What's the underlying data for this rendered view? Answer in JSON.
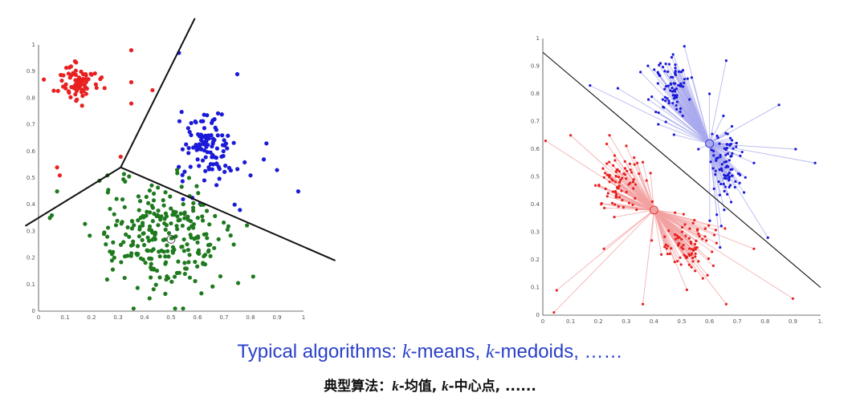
{
  "captions": {
    "english": {
      "prefix": "Typical algorithms: ",
      "k1": "k",
      "mid1": "-means, ",
      "k2": "k",
      "mid2": "-medoids, ……"
    },
    "chinese": {
      "prefix": "典型算法：",
      "k1": "k",
      "mid1": "-均值, ",
      "k2": "k",
      "mid2": "-中心点, ......"
    }
  },
  "colors": {
    "red": "#e82020",
    "blue": "#1a1ad8",
    "green": "#1f7a1f",
    "light_red": "#f2a0a0",
    "light_blue": "#a9a9ee",
    "caption_blue": "#2a40c8",
    "boundary": "#111111"
  },
  "chart_data": [
    {
      "type": "scatter",
      "algorithm": "k-means",
      "xlim": [
        0,
        1
      ],
      "ylim": [
        0,
        1
      ],
      "x_ticks": [
        "0",
        "0.1",
        "0.2",
        "0.3",
        "0.4",
        "0.5",
        "0.6",
        "0.7",
        "0.8",
        "0.9",
        "1"
      ],
      "y_ticks": [
        "0",
        "0.1",
        "0.2",
        "0.3",
        "0.4",
        "0.5",
        "0.6",
        "0.7",
        "0.8",
        "0.9",
        "1"
      ],
      "clusters": [
        {
          "color": "red",
          "center": [
            0.15,
            0.86
          ],
          "spread": [
            0.035,
            0.035
          ],
          "count": 80,
          "extras": [
            [
              0.35,
              0.98
            ],
            [
              0.35,
              0.86
            ],
            [
              0.43,
              0.83
            ],
            [
              0.35,
              0.78
            ],
            [
              0.07,
              0.54
            ],
            [
              0.08,
              0.51
            ],
            [
              0.31,
              0.58
            ],
            [
              0.02,
              0.87
            ]
          ]
        },
        {
          "color": "blue",
          "center": [
            0.64,
            0.62
          ],
          "spread": [
            0.05,
            0.07
          ],
          "count": 110,
          "extras": [
            [
              0.53,
              0.97
            ],
            [
              0.75,
              0.89
            ],
            [
              0.86,
              0.63
            ],
            [
              0.85,
              0.57
            ],
            [
              0.9,
              0.53
            ],
            [
              0.98,
              0.45
            ],
            [
              0.8,
              0.51
            ],
            [
              0.74,
              0.4
            ],
            [
              0.76,
              0.38
            ]
          ]
        },
        {
          "color": "green",
          "center": [
            0.46,
            0.28
          ],
          "spread": [
            0.12,
            0.1
          ],
          "count": 260,
          "centroid": [
            0.5,
            0.27
          ],
          "extras": [
            [
              0.07,
              0.45
            ],
            [
              0.26,
              0.51
            ],
            [
              0.23,
              0.49
            ],
            [
              0.81,
              0.13
            ],
            [
              0.05,
              0.36
            ]
          ]
        }
      ],
      "boundaries": [
        [
          [
            0.31,
            0.54
          ],
          [
            0.59,
            1.1
          ]
        ],
        [
          [
            0.31,
            0.54
          ],
          [
            -0.05,
            0.32
          ]
        ],
        [
          [
            0.31,
            0.54
          ],
          [
            1.12,
            0.19
          ]
        ]
      ]
    },
    {
      "type": "scatter",
      "algorithm": "k-medoids",
      "xlim": [
        0,
        1
      ],
      "ylim": [
        0,
        1
      ],
      "x_ticks": [
        "0",
        "0.1",
        "0.2",
        "0.3",
        "0.4",
        "0.5",
        "0.6",
        "0.7",
        "0.8",
        "0.9",
        "1."
      ],
      "y_ticks": [
        "0",
        "0.1",
        "0.2",
        "0.3",
        "0.4",
        "0.5",
        "0.6",
        "0.7",
        "0.8",
        "0.9",
        "1"
      ],
      "clusters": [
        {
          "color": "blue",
          "medoid": [
            0.6,
            0.62
          ],
          "blobs": [
            {
              "center": [
                0.46,
                0.82
              ],
              "spread": [
                0.04,
                0.05
              ],
              "count": 80
            },
            {
              "center": [
                0.66,
                0.52
              ],
              "spread": [
                0.03,
                0.08
              ],
              "count": 90
            }
          ],
          "extras": [
            [
              0.17,
              0.83
            ],
            [
              0.27,
              0.82
            ],
            [
              0.45,
              0.88
            ],
            [
              0.49,
              0.88
            ],
            [
              0.66,
              0.92
            ],
            [
              0.85,
              0.76
            ],
            [
              0.91,
              0.6
            ],
            [
              0.98,
              0.55
            ],
            [
              0.6,
              0.8
            ],
            [
              0.81,
              0.28
            ],
            [
              0.76,
              0.55
            ],
            [
              0.56,
              0.6
            ]
          ]
        },
        {
          "color": "red",
          "medoid": [
            0.4,
            0.38
          ],
          "blobs": [
            {
              "center": [
                0.27,
                0.48
              ],
              "spread": [
                0.045,
                0.06
              ],
              "count": 85
            },
            {
              "center": [
                0.52,
                0.25
              ],
              "spread": [
                0.05,
                0.05
              ],
              "count": 85
            }
          ],
          "extras": [
            [
              0.01,
              0.63
            ],
            [
              0.1,
              0.65
            ],
            [
              0.04,
              0.01
            ],
            [
              0.05,
              0.09
            ],
            [
              0.22,
              0.24
            ],
            [
              0.36,
              0.04
            ],
            [
              0.9,
              0.06
            ],
            [
              0.76,
              0.24
            ],
            [
              0.34,
              0.55
            ],
            [
              0.66,
              0.04
            ],
            [
              0.24,
              0.65
            ]
          ]
        }
      ],
      "boundaries": [
        [
          [
            0.0,
            0.95
          ],
          [
            1.0,
            0.1
          ]
        ]
      ]
    }
  ]
}
